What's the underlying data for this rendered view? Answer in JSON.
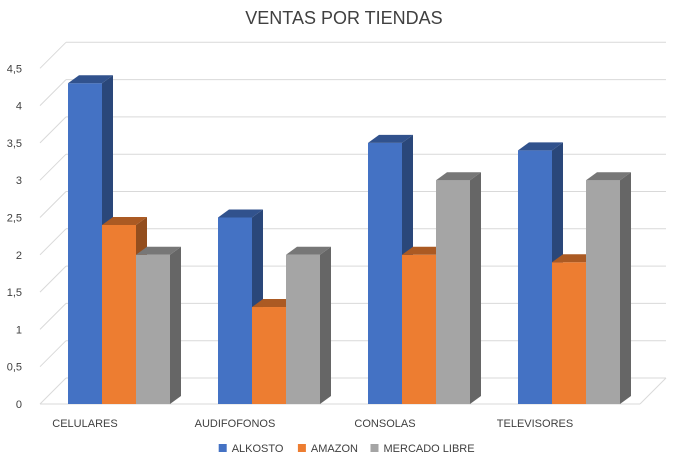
{
  "chart_data": {
    "type": "bar",
    "title": "VENTAS POR TIENDAS",
    "categories": [
      "CELULARES",
      "AUDIFOFONOS",
      "CONSOLAS",
      "TELEVISORES"
    ],
    "series": [
      {
        "name": "ALKOSTO",
        "values": [
          4.3,
          2.5,
          3.5,
          3.4
        ],
        "color": "#4472C4"
      },
      {
        "name": "AMAZON",
        "values": [
          2.4,
          1.3,
          2.0,
          1.9
        ],
        "color": "#ED7D31"
      },
      {
        "name": "MERCADO LIBRE",
        "values": [
          2.0,
          2.0,
          3.0,
          3.0
        ],
        "color": "#A5A5A5"
      }
    ],
    "yticks": [
      "0",
      "0,5",
      "1",
      "1,5",
      "2",
      "2,5",
      "3",
      "3,5",
      "4",
      "4,5"
    ],
    "ylim": [
      0,
      4.5
    ],
    "grid": true,
    "legend": "bottom",
    "style": "3d-clustered-column"
  }
}
